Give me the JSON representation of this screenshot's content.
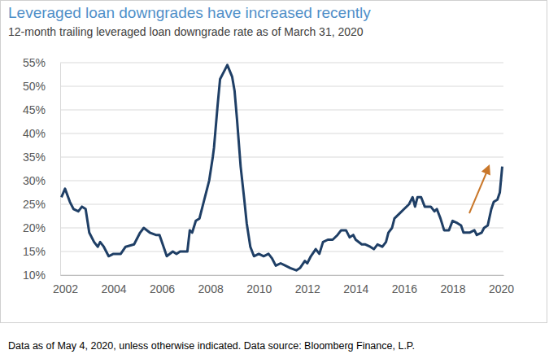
{
  "chart_data": {
    "type": "line",
    "title": "Leveraged loan downgrades have increased recently",
    "subtitle": "12-month trailing leveraged loan downgrade rate as of March 31, 2020",
    "caption": "Data as of May 4, 2020, unless otherwise indicated. Data source: Bloomberg Finance, L.P.",
    "color": "#1f3f66",
    "grid": true,
    "x": [
      2001.85,
      2002.0,
      2002.2,
      2002.35,
      2002.55,
      2002.7,
      2002.85,
      2003.0,
      2003.2,
      2003.35,
      2003.45,
      2003.6,
      2003.8,
      2004.0,
      2004.3,
      2004.5,
      2004.85,
      2005.1,
      2005.25,
      2005.5,
      2005.75,
      2005.9,
      2006.1,
      2006.2,
      2006.45,
      2006.6,
      2006.75,
      2007.05,
      2007.15,
      2007.25,
      2007.4,
      2007.55,
      2007.7,
      2007.85,
      2007.95,
      2008.1,
      2008.15,
      2008.3,
      2008.4,
      2008.55,
      2008.7,
      2008.9,
      2009.0,
      2009.1,
      2009.25,
      2009.4,
      2009.5,
      2009.65,
      2009.8,
      2010.0,
      2010.2,
      2010.4,
      2010.55,
      2010.7,
      2010.9,
      2011.1,
      2011.3,
      2011.55,
      2011.7,
      2011.9,
      2012.0,
      2012.15,
      2012.35,
      2012.5,
      2012.65,
      2012.85,
      2013.05,
      2013.25,
      2013.4,
      2013.6,
      2013.75,
      2013.9,
      2014.0,
      2014.25,
      2014.4,
      2014.6,
      2014.75,
      2014.9,
      2015.1,
      2015.25,
      2015.35,
      2015.5,
      2015.6,
      2015.8,
      2016.0,
      2016.2,
      2016.35,
      2016.45,
      2016.55,
      2016.7,
      2016.85,
      2017.1,
      2017.25,
      2017.35,
      2017.5,
      2017.65,
      2017.85,
      2018.0,
      2018.2,
      2018.35,
      2018.45,
      2018.7,
      2018.9,
      2019.0,
      2019.2,
      2019.3,
      2019.45,
      2019.6,
      2019.7,
      2019.85,
      2019.95,
      2020.05
    ],
    "values": [
      26.5,
      28.3,
      25.5,
      24,
      23.5,
      24.5,
      24,
      19,
      17,
      16,
      17,
      16,
      14,
      14.5,
      14.5,
      16,
      16.5,
      19,
      20,
      19,
      18.5,
      18.5,
      15.5,
      14,
      15,
      14.5,
      15,
      15,
      19.5,
      19,
      21.5,
      22,
      25,
      28,
      30,
      35,
      37,
      46,
      51.5,
      53,
      54.5,
      52,
      49,
      43,
      33,
      26,
      21,
      16,
      14,
      14.5,
      14,
      14.5,
      13.5,
      12,
      12.5,
      12,
      11.5,
      11,
      11.5,
      13,
      12.5,
      14,
      15.5,
      14.5,
      17,
      17.5,
      17.5,
      18.5,
      19.5,
      19.5,
      18,
      18.5,
      17.5,
      16.5,
      16.5,
      16,
      15.5,
      16.5,
      16,
      17,
      19,
      20,
      22,
      23,
      24,
      25,
      26.5,
      24.5,
      26.5,
      26.5,
      24.5,
      24.5,
      23.5,
      24,
      22,
      19.5,
      19.5,
      21.5,
      21,
      20.5,
      19,
      19,
      19.5,
      18.5,
      19,
      20,
      20.5,
      24,
      25.5,
      26,
      27.5,
      33
    ],
    "xlim": [
      2001.8,
      2020.1
    ],
    "xticks": [
      2002,
      2004,
      2006,
      2008,
      2010,
      2012,
      2014,
      2016,
      2018,
      2020
    ],
    "ylim": [
      10,
      55
    ],
    "yticks": [
      {
        "value": 10,
        "label": "10%"
      },
      {
        "value": 15,
        "label": "15%"
      },
      {
        "value": 20,
        "label": "20%"
      },
      {
        "value": 25,
        "label": "25%"
      },
      {
        "value": 30,
        "label": "30%"
      },
      {
        "value": 35,
        "label": "35%"
      },
      {
        "value": 40,
        "label": "40%"
      },
      {
        "value": 45,
        "label": "45%"
      },
      {
        "value": 50,
        "label": "50%"
      },
      {
        "value": 55,
        "label": "55%"
      }
    ]
  }
}
